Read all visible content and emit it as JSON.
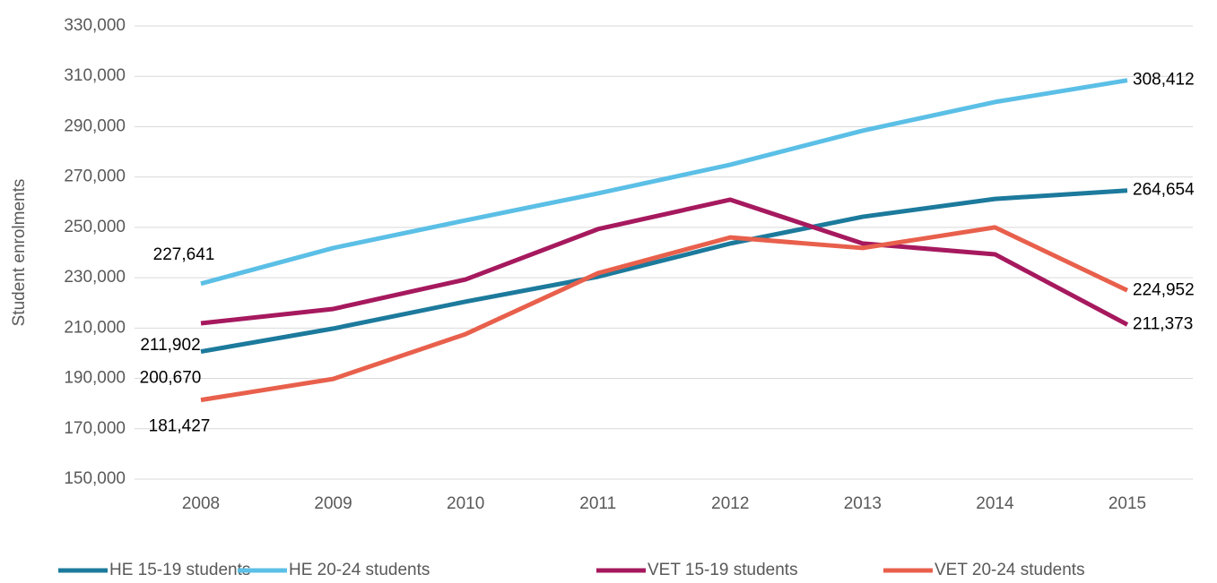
{
  "chart_data": {
    "type": "line",
    "ylabel": "Student enrolments",
    "categories": [
      "2008",
      "2009",
      "2010",
      "2011",
      "2012",
      "2013",
      "2014",
      "2015"
    ],
    "ylim": [
      150000,
      330000
    ],
    "yticks": [
      {
        "value": 150000,
        "label": "150,000"
      },
      {
        "value": 170000,
        "label": "170,000"
      },
      {
        "value": 190000,
        "label": "190,000"
      },
      {
        "value": 210000,
        "label": "210,000"
      },
      {
        "value": 230000,
        "label": "230,000"
      },
      {
        "value": 250000,
        "label": "250,000"
      },
      {
        "value": 270000,
        "label": "270,000"
      },
      {
        "value": 290000,
        "label": "290,000"
      },
      {
        "value": 310000,
        "label": "310,000"
      },
      {
        "value": 330000,
        "label": "330,000"
      }
    ],
    "grid": true,
    "legend": "bottom",
    "series": [
      {
        "name": "HE 15-19 students",
        "color": "#1c7a9c",
        "values": [
          200670,
          209800,
          220500,
          230400,
          243600,
          254200,
          261300,
          264654
        ],
        "value_labels": [
          "200,670",
          null,
          null,
          null,
          null,
          null,
          null,
          "264,654"
        ]
      },
      {
        "name": "HE 20-24 students",
        "color": "#5bbfe6",
        "values": [
          227641,
          241800,
          252800,
          263500,
          274900,
          288400,
          299800,
          308412
        ],
        "value_labels": [
          "227,641",
          null,
          null,
          null,
          null,
          null,
          null,
          "308,412"
        ]
      },
      {
        "name": "VET 15-19 students",
        "color": "#a6195e",
        "values": [
          211902,
          217600,
          229300,
          249300,
          261000,
          243600,
          239300,
          211373
        ],
        "value_labels": [
          "211,902",
          null,
          null,
          null,
          null,
          null,
          null,
          "211,373"
        ]
      },
      {
        "name": "VET 20-24 students",
        "color": "#e8604c",
        "values": [
          181427,
          189800,
          207600,
          231800,
          246000,
          241800,
          250000,
          224952
        ],
        "value_labels": [
          "181,427",
          null,
          null,
          null,
          null,
          null,
          null,
          "224,952"
        ]
      }
    ]
  }
}
